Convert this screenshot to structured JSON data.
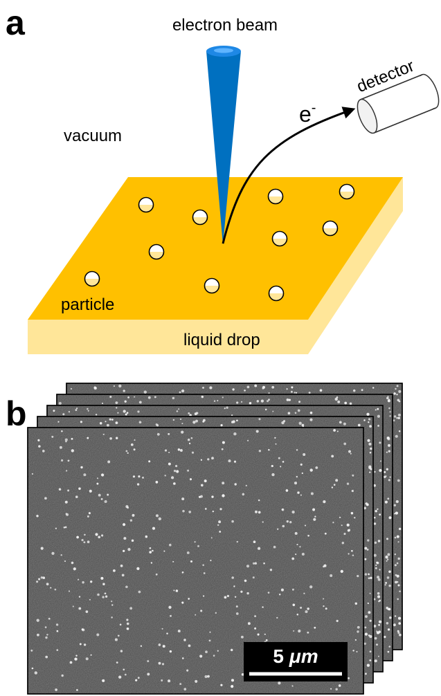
{
  "panel_a": {
    "label": "a",
    "beam_label": "electron beam",
    "detector_label": "detector",
    "electron_label": "e",
    "electron_charge": "-",
    "medium_label": "vacuum",
    "particle_label": "particle",
    "drop_label": "liquid drop"
  },
  "panel_b": {
    "label": "b",
    "scale_bar": {
      "number": "5",
      "unit": "μm"
    }
  }
}
